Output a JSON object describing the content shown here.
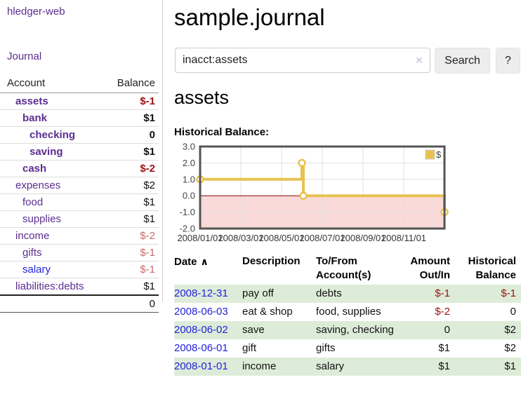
{
  "app": {
    "brand": "hledger-web",
    "nav_journal": "Journal"
  },
  "sidebar": {
    "headers": {
      "account": "Account",
      "balance": "Balance"
    },
    "accounts": [
      {
        "name": "assets",
        "balance": "$-1"
      },
      {
        "name": "bank",
        "balance": "$1"
      },
      {
        "name": "checking",
        "balance": "0"
      },
      {
        "name": "saving",
        "balance": "$1"
      },
      {
        "name": "cash",
        "balance": "$-2"
      },
      {
        "name": "expenses",
        "balance": "$2"
      },
      {
        "name": "food",
        "balance": "$1"
      },
      {
        "name": "supplies",
        "balance": "$1"
      },
      {
        "name": "income",
        "balance": "$-2"
      },
      {
        "name": "gifts",
        "balance": "$-1"
      },
      {
        "name": "salary",
        "balance": "$-1"
      },
      {
        "name": "liabilities:debts",
        "balance": "$1"
      }
    ],
    "total": "0"
  },
  "header": {
    "title": "sample.journal"
  },
  "search": {
    "value": "inacct:assets",
    "clear_icon": "✕",
    "button_label": "Search",
    "help_label": "?"
  },
  "account_page": {
    "heading": "assets",
    "chart_label": "Historical Balance:"
  },
  "chart_data": {
    "type": "line",
    "step": true,
    "title": "Historical Balance",
    "legend": "$",
    "legend_position": "top-right",
    "grid": true,
    "ylim": [
      -2,
      3
    ],
    "yticks": [
      "3.0",
      "2.0",
      "1.0",
      "0.0",
      "-1.0",
      "-2.0"
    ],
    "xlim_months": [
      0,
      12
    ],
    "xticks": [
      {
        "pos": 0,
        "label": "2008/01/01"
      },
      {
        "pos": 2,
        "label": "2008/03/01"
      },
      {
        "pos": 4,
        "label": "2008/05/01"
      },
      {
        "pos": 6,
        "label": "2008/07/01"
      },
      {
        "pos": 8,
        "label": "2008/09/01"
      },
      {
        "pos": 10,
        "label": "2008/11/01"
      }
    ],
    "series": [
      {
        "name": "$",
        "color": "#e8c250",
        "dates": [
          "2008/01/01",
          "2008/06/01",
          "2008/06/03",
          "2008/12/31"
        ],
        "points_x_months": [
          0,
          5,
          5.07,
          12
        ],
        "values": [
          1,
          2,
          0,
          -1
        ]
      }
    ],
    "negative_region_color": "#fad9d9",
    "zero_line_color": "#8b0000",
    "line_color": "#e8c250"
  },
  "register": {
    "headers": {
      "date": "Date",
      "description": "Description",
      "accounts": "To/From Account(s)",
      "amount": "Amount Out/In",
      "balance": "Historical Balance"
    },
    "sort_icon": "∧",
    "rows": [
      {
        "date": "2008-12-31",
        "description": "pay off",
        "accounts": "debts",
        "amount": "$-1",
        "balance": "$-1"
      },
      {
        "date": "2008-06-03",
        "description": "eat & shop",
        "accounts": "food, supplies",
        "amount": "$-2",
        "balance": "0"
      },
      {
        "date": "2008-06-02",
        "description": "save",
        "accounts": "saving, checking",
        "amount": "0",
        "balance": "$2"
      },
      {
        "date": "2008-06-01",
        "description": "gift",
        "accounts": "gifts",
        "amount": "$1",
        "balance": "$2"
      },
      {
        "date": "2008-01-01",
        "description": "income",
        "accounts": "salary",
        "amount": "$1",
        "balance": "$1"
      }
    ]
  }
}
